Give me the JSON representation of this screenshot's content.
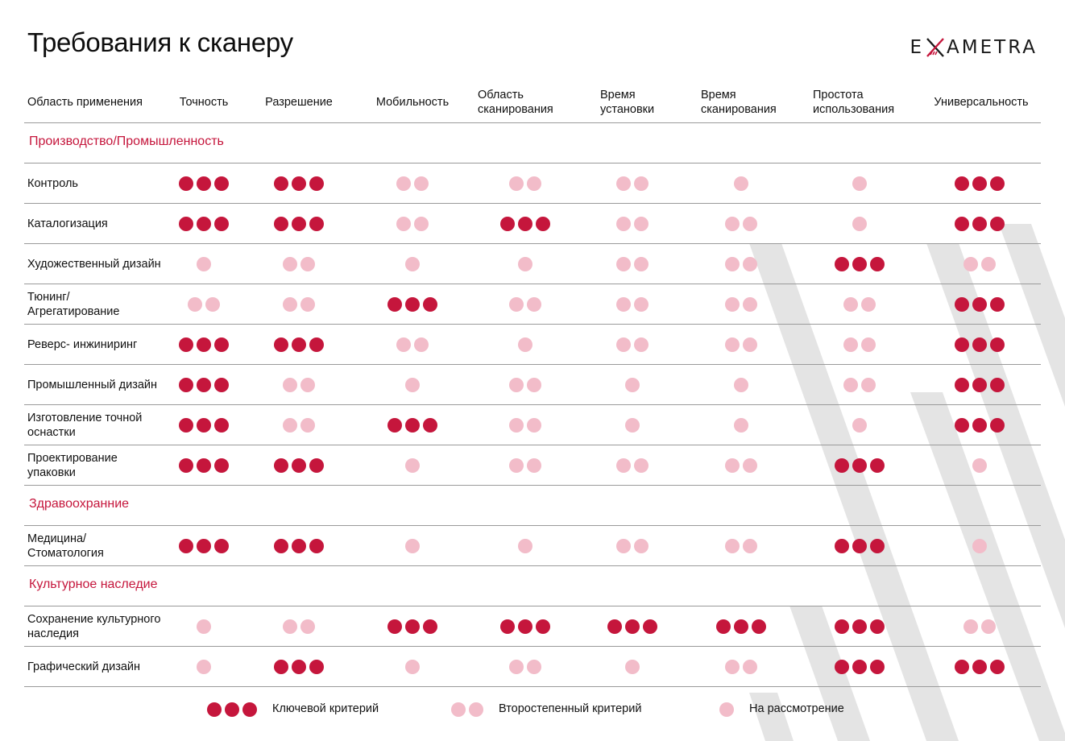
{
  "title": "Требования к сканеру",
  "brand": {
    "left": "E",
    "right": "AMETRA",
    "mark": "x-mark-icon",
    "accent": "#c5163c"
  },
  "colors": {
    "key": "#c5163c",
    "secondary": "#f2bcc9",
    "consideration": "#f2bcc9"
  },
  "headers": [
    "Область применения",
    "Точность",
    "Разрешение",
    "Мобильность",
    "Область сканирования",
    "Время установки",
    "Время сканирования",
    "Простота использования",
    "Универсальность"
  ],
  "sections": [
    {
      "name": "Производство/Промышленность",
      "rows": [
        {
          "label": "Контроль",
          "v": [
            3,
            3,
            2,
            2,
            2,
            1,
            1,
            3
          ]
        },
        {
          "label": "Каталогизация",
          "v": [
            3,
            3,
            2,
            3,
            2,
            2,
            1,
            3
          ]
        },
        {
          "label": "Художественный дизайн",
          "v": [
            1,
            2,
            1,
            1,
            2,
            2,
            3,
            2
          ]
        },
        {
          "label": "Тюнинг/ Агрегатирование",
          "v": [
            2,
            2,
            3,
            2,
            2,
            2,
            2,
            3
          ]
        },
        {
          "label": "Реверс- инжиниринг",
          "v": [
            3,
            3,
            2,
            1,
            2,
            2,
            2,
            3
          ]
        },
        {
          "label": "Промышленный дизайн",
          "v": [
            3,
            2,
            1,
            2,
            1,
            1,
            2,
            3
          ]
        },
        {
          "label": "Изготовление точной оснастки",
          "v": [
            3,
            2,
            3,
            2,
            1,
            1,
            1,
            3
          ]
        },
        {
          "label": "Проектирование упаковки",
          "v": [
            3,
            3,
            1,
            2,
            2,
            2,
            3,
            1
          ]
        }
      ]
    },
    {
      "name": "Здравоохранние",
      "rows": [
        {
          "label": "Медицина/ Стоматология",
          "v": [
            3,
            3,
            1,
            1,
            2,
            2,
            3,
            1
          ]
        }
      ]
    },
    {
      "name": "Культурное наследие",
      "rows": [
        {
          "label": "Сохранение культурного наследия",
          "v": [
            1,
            2,
            3,
            3,
            3,
            3,
            3,
            2
          ]
        },
        {
          "label": "Графический дизайн",
          "v": [
            1,
            3,
            1,
            2,
            1,
            2,
            3,
            3
          ]
        }
      ]
    }
  ],
  "legend": [
    {
      "count": 3,
      "label": "Ключевой критерий"
    },
    {
      "count": 2,
      "label": "Второстепенный критерий"
    },
    {
      "count": 1,
      "label": "На рассмотрение"
    }
  ]
}
